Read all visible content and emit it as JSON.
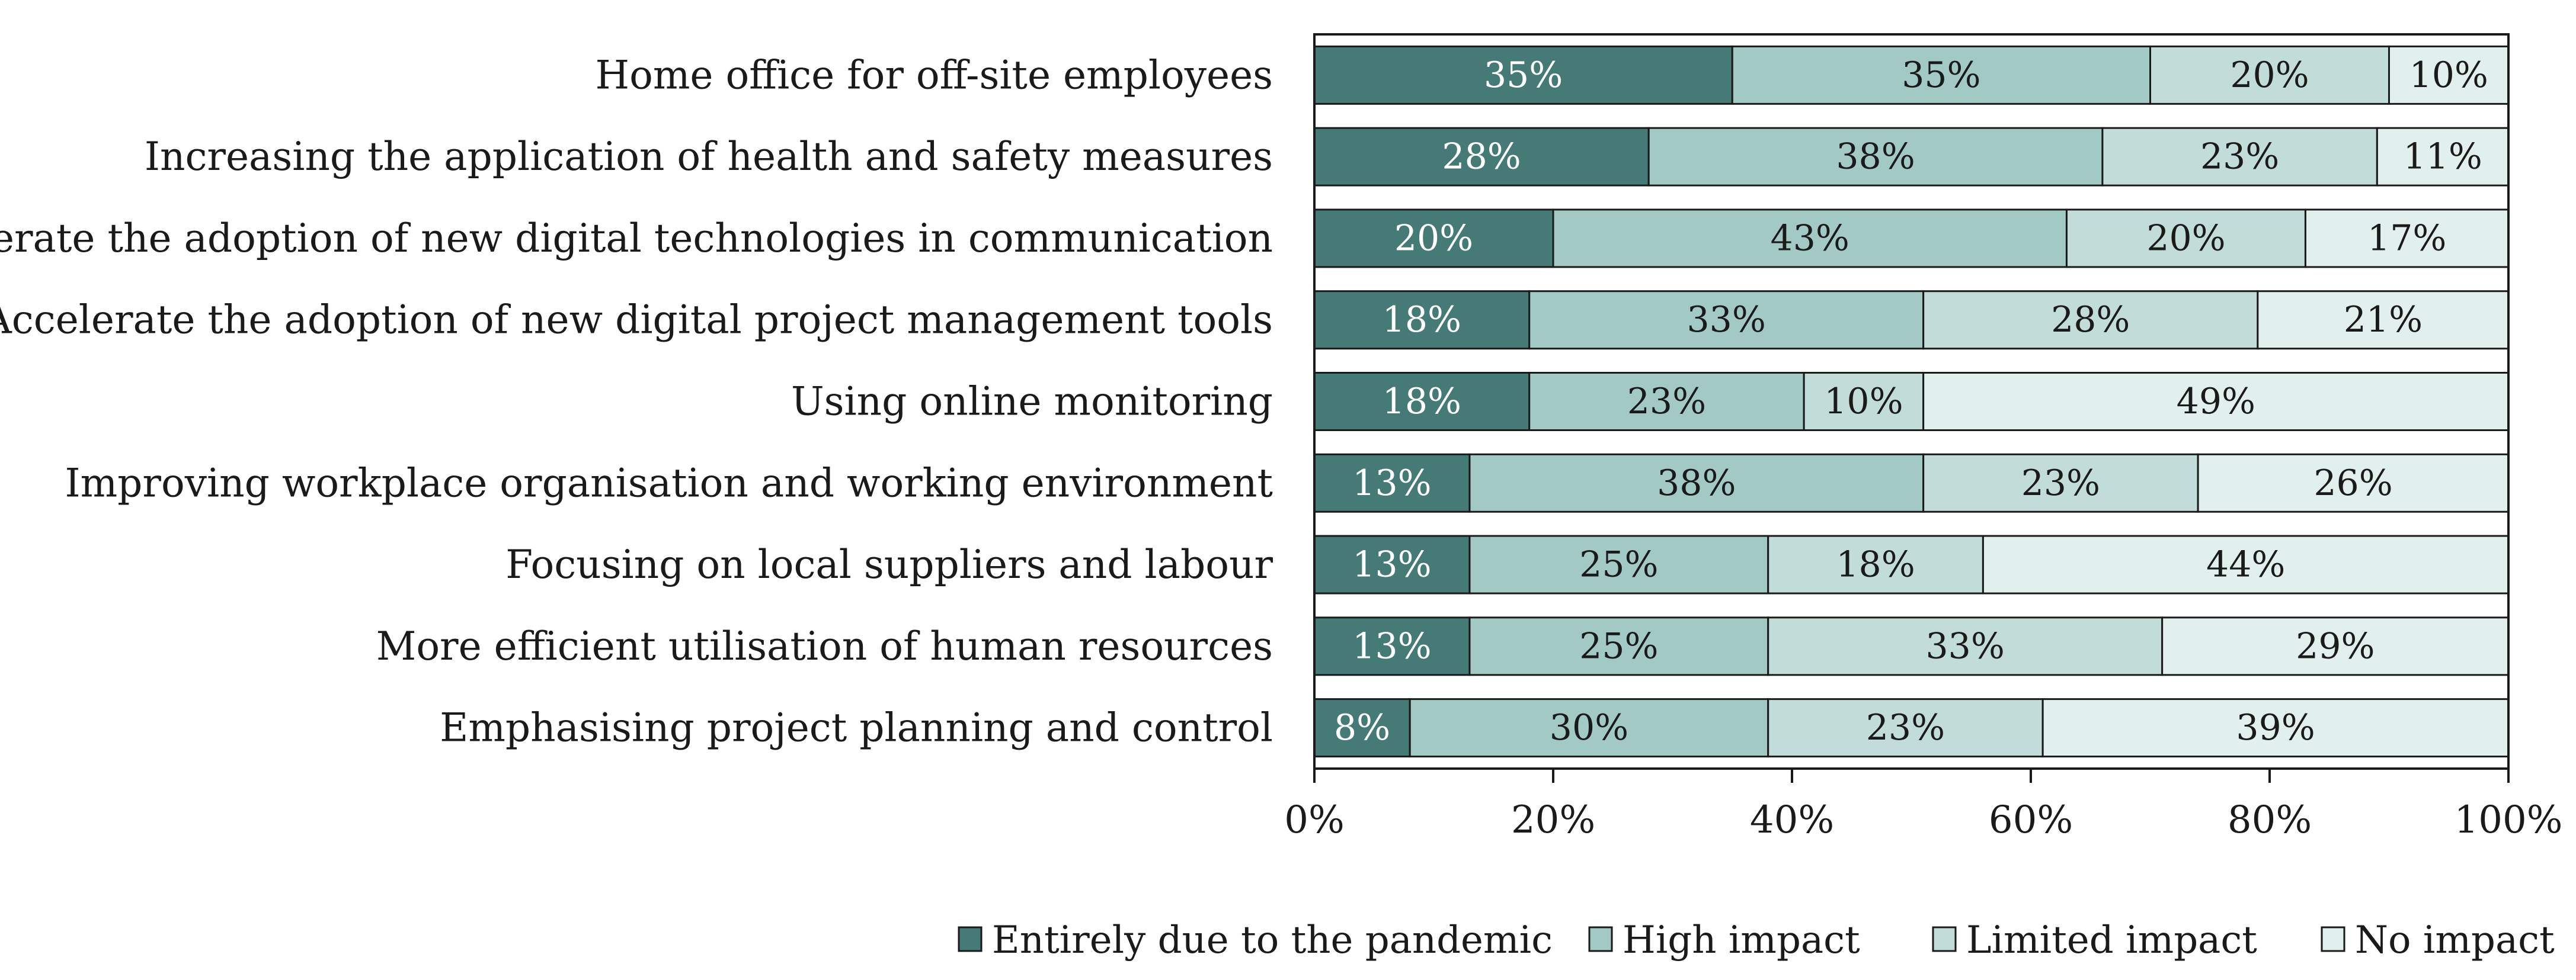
{
  "chart_data": {
    "type": "bar",
    "orientation": "horizontal",
    "stacked": true,
    "title": "",
    "xlabel": "",
    "ylabel": "",
    "xlim": [
      0,
      100
    ],
    "categories": [
      "Home office for off-site employees",
      "Increasing the application of health and safety measures",
      "Accelerate the adoption of new digital technologies in communication",
      "Accelerate the adoption of new digital project management tools",
      "Using online monitoring",
      "Improving workplace organisation and working environment",
      "Focusing on local suppliers and labour",
      "More efficient utilisation of human resources",
      "Emphasising project planning and control"
    ],
    "series": [
      {
        "name": "Entirely due to the pandemic",
        "color": "#467a76",
        "label_color": "#ffffff",
        "values": [
          35,
          28,
          20,
          18,
          18,
          13,
          13,
          13,
          8
        ]
      },
      {
        "name": "High impact",
        "color": "#a3c9c5",
        "label_color": "#1a1a1a",
        "values": [
          35,
          38,
          43,
          33,
          23,
          38,
          25,
          25,
          30
        ]
      },
      {
        "name": "Limited impact",
        "color": "#c2dcd9",
        "label_color": "#1a1a1a",
        "values": [
          20,
          23,
          20,
          28,
          10,
          23,
          18,
          33,
          23
        ]
      },
      {
        "name": "No impact",
        "color": "#e1efed",
        "label_color": "#1a1a1a",
        "values": [
          10,
          11,
          17,
          21,
          49,
          26,
          44,
          29,
          39
        ]
      }
    ],
    "x_ticks": [
      0,
      20,
      40,
      60,
      80,
      100
    ],
    "x_tick_labels": [
      "0%",
      "20%",
      "40%",
      "60%",
      "80%",
      "100%"
    ],
    "value_suffix": "%",
    "legend_position": "bottom",
    "grid": false
  }
}
